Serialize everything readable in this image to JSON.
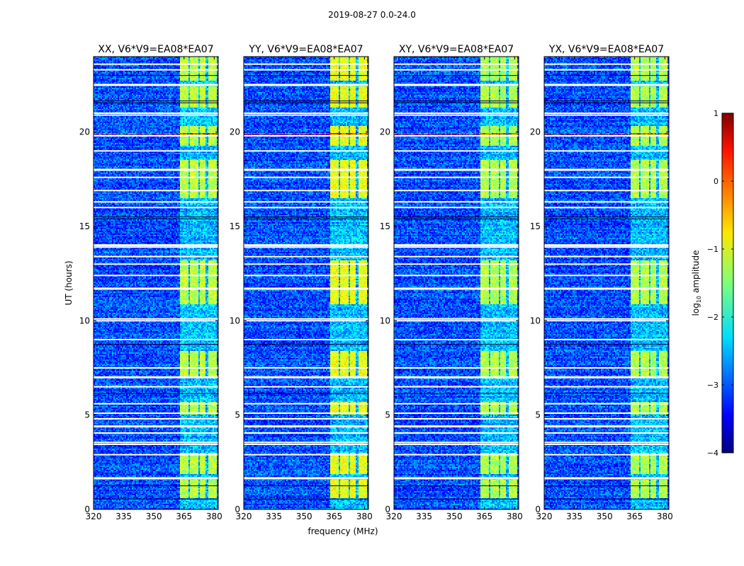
{
  "chart_data": {
    "type": "heatmap",
    "suptitle": "2019-08-27 0.0-24.0",
    "xlabel": "frequency (MHz)",
    "ylabel": "UT (hours)",
    "xlim": [
      320,
      382
    ],
    "ylim": [
      0,
      24
    ],
    "xticks": [
      "320",
      "335",
      "350",
      "365",
      "380"
    ],
    "yticks": [
      "0",
      "5",
      "10",
      "15",
      "20"
    ],
    "panels": [
      {
        "title": "XX, V6*V9=EA08*EA07",
        "pol": "XX"
      },
      {
        "title": "YY, V6*V9=EA08*EA07",
        "pol": "YY"
      },
      {
        "title": "XY, V6*V9=EA08*EA07",
        "pol": "XY"
      },
      {
        "title": "YX, V6*V9=EA08*EA07",
        "pol": "YX"
      }
    ],
    "colorbar": {
      "label": "log10 amplitude",
      "range": [
        -4,
        1
      ],
      "ticks": [
        "1",
        "0",
        "−1",
        "−2",
        "−3",
        "−4"
      ],
      "colormap": "jet"
    },
    "features": {
      "background_log10_amplitude": -3.0,
      "rfi_channel_blocks_mhz": [
        [
          363,
          367
        ],
        [
          368,
          372
        ],
        [
          373,
          376
        ],
        [
          377,
          381
        ]
      ],
      "rfi_block_log10_amplitude": -1.2,
      "strong_rfi_hour": 19.9,
      "flagged_rows_hours": [
        1.65,
        2.9,
        3.45,
        3.55,
        4.05,
        4.4,
        4.8,
        5.1,
        5.6,
        6.5,
        7.0,
        7.5,
        9.0,
        10.0,
        10.1,
        11.7,
        12.4,
        13.0,
        13.4,
        13.9,
        14.0,
        16.0,
        16.3,
        16.9,
        17.6,
        18.0,
        19.0,
        19.8,
        20.9,
        21.0,
        22.5,
        23.3,
        23.6
      ]
    }
  }
}
